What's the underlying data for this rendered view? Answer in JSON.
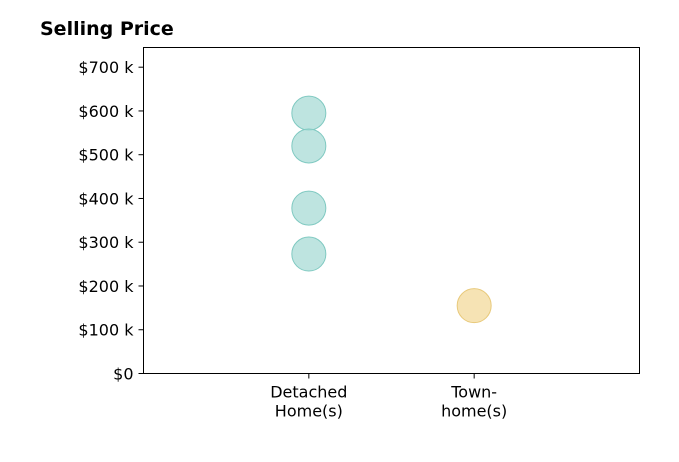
{
  "chart_data": {
    "type": "scatter",
    "title": "Selling Price",
    "xlabel": "",
    "ylabel": "",
    "categories": [
      [
        "Detached",
        "Home(s)"
      ],
      [
        "Town-",
        "home(s)"
      ]
    ],
    "xlim": [
      -1,
      2
    ],
    "ylim": [
      0,
      745000
    ],
    "yticks": [
      0,
      100000,
      200000,
      300000,
      400000,
      500000,
      600000,
      700000
    ],
    "ytick_labels": [
      "$0",
      "$100 k",
      "$200 k",
      "$300 k",
      "$400 k",
      "$500 k",
      "$600 k",
      "$700 k"
    ],
    "grid": false,
    "series": [
      {
        "category": 0,
        "color": "#a8dbd6",
        "stroke": "#7fc9c1",
        "values": [
          595000,
          520000,
          378000,
          273000
        ]
      },
      {
        "category": 1,
        "color": "#f3d99b",
        "stroke": "#e8c97a",
        "values": [
          155000
        ]
      }
    ]
  }
}
